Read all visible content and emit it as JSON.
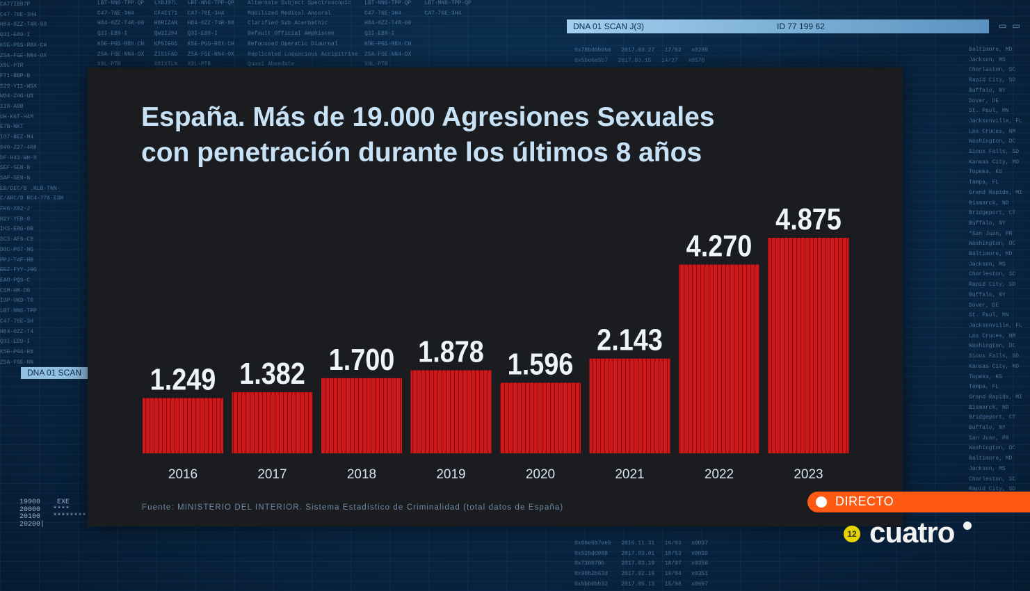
{
  "background": {
    "left_column": "CA77IB87P\nC47-76E-3H4\nH84-0ZZ-T4R-60\nQ3I-E89-I\nK5E-PGS-R8X-CH\nZ5A-FGE-NN4-OX\nX9L-PTR\nF71-BBP-B\nS29-Y11-WSX\nW04-Z4G-U8\n110-A9B\nUH-K6T-H4M\nE7B-NKT\n107-BEZ-M4\n040-Z27-4R8\nDF-H43-WH-0\nSEF-GEN-N\nSAF-GEN-N\nEB/DEC/B .RLB-TNN-\nC/ARC/D RC4-776-E3M\nFH6-X02-J\nH2Y-YEB-0\nIKS-ERG-0B\nSC3-AF6-C9\nD0C-PO7-NG\nPPJ-T4F-HB\nEEZ-FYY-J9G\nEAO-PQS-C\nCSM-HM-D0\nI0P-UKD-T0\nLBT-NN6-TPP\nC47-76E-3H\nH84-0ZZ-T4\nQ3I-E89-I\nK5E-PGS-R8\nZ5A-FGE-NN",
    "top_columns": "LBT-NN6-TPP-QP   LXBJ97L   LBT-NN6-TPP-QP    Alternate Subject Spectroscopic    LBT-NN6-TPP-QP    LBT-NN6-TPP-QP\nC47-76E-3H4      CF4I171   C47-76E-3H4       Mobilized Medical Ancoral          C47-76E-3H4       C47-76E-3H4\nH84-0ZZ-T4R-60   H8RIZ4R   H84-0ZZ-T4R-60    Clarified Sub Acerbathic           H84-0ZZ-T4R-60\nQ3I-E89-I        QW3IJ94   Q3I-E89-I         Default Official Amphiscon         Q3I-E89-I\nK5E-PGS-R8X-CH   KP5IE6S   K5E-PGS-R8X-CH    Refocused Operatic Diaurnal        K5E-PGS-R8X-CH\nZ5A-FGE-NN4-OX   ZI51FAO   Z5A-FGE-NN4-OX    Replicated Loquacious Accipitrine  Z5A-FGE-NN4-OX\nX9L-PTR          X8IXTLN   X9L-PTR           Quasi Abeedate                     X9L-PTR",
    "right_column": "Baltimore, MD\nJackson, MS\nCharleston, SC\nRapid City, SD\nBuffalo, NY\nDover, DE\nSt. Paul, MN\nJacksonville, FL\nLas Cruces, NM\nWashington, DC\nSioux Falls, SD\nKansas City, MO\nTopeka, KS\nTampa, FL\nGrand Rapids, MI\nBismarck, ND\nBridgeport, CT\nBuffalo, NY\n*San Juan, PR\nWashington, DC\nBaltimore, MD\nJackson, MS\nCharleston, SC\nRapid City, SD\nBuffalo, NY\nDover, DE\nSt. Paul, MN\nJacksonville, FL\nLas Cruces, NM\nWashington, DC\nSioux Falls, SD\nKansas City, MO\nTopeka, KS\nTampa, FL\nGrand Rapids, MI\nBismarck, ND\nBridgeport, CT\nBuffalo, NY\nSan Juan, PR\nWashington, DC\nBaltimore, MD\nJackson, MS\nCharleston, SC\nRapid City, SD",
    "bottom_column": "0x06ebb7eeb   2016.11.31   16/03   x0037\n0x52bdd088    2017.03.01   18/53   x0096\n0x73b870b     2017.03.19   18/97   x0356\n0x90b2b63d    2017.02.19   19/04   x0351\n0xbbb0bb32    2017.05.13   15/98   x0697",
    "scan_data": "0x78bd0b0b6   2017.03.27   17/62   x0298\n0x5be6e5b7   2017.03.15   14/27   x0570\n0x6b206c17   2017.05.23   13/94   x0071",
    "scan_bar_label": "DNA 01 SCAN J(3)",
    "scan_bar_id": "ID 77 199 62",
    "scan_left_label": "DNA 01 SCAN",
    "counter_text": "19900    EXE\n20000   ****\n20100   ********\n20200|"
  },
  "panel": {
    "title_line1": "España. Más de 19.000 Agresiones Sexuales",
    "title_line2": "con penetración durante los últimos 8 años",
    "source": "Fuente: MINISTERIO DEL INTERIOR. Sistema Estadístico de Criminalidad (total datos de España)"
  },
  "broadcast": {
    "live_label": "DIRECTO",
    "channel": "cuatro",
    "age_rating": "12"
  },
  "chart_data": {
    "type": "bar",
    "title": "España. Más de 19.000 Agresiones Sexuales con penetración durante los últimos 8 años",
    "xlabel": "",
    "ylabel": "",
    "categories": [
      "2016",
      "2017",
      "2018",
      "2019",
      "2020",
      "2021",
      "2022",
      "2023"
    ],
    "values": [
      1249,
      1382,
      1700,
      1878,
      1596,
      2143,
      4270,
      4875
    ],
    "value_labels": [
      "1.249",
      "1.382",
      "1.700",
      "1.878",
      "1.596",
      "2.143",
      "4.270",
      "4.875"
    ],
    "ylim": [
      0,
      4875
    ],
    "grid": false,
    "legend": "none",
    "bar_color": "#d0181c",
    "stripe_color": "#7a0a0c"
  }
}
